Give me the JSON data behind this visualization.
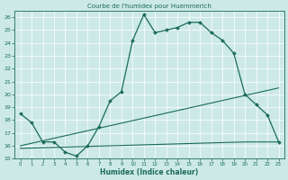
{
  "title": "Courbe de l'humidex pour Huemmerich",
  "xlabel": "Humidex (Indice chaleur)",
  "xlim": [
    -0.5,
    23.5
  ],
  "ylim": [
    15,
    26.5
  ],
  "yticks": [
    15,
    16,
    17,
    18,
    19,
    20,
    21,
    22,
    23,
    24,
    25,
    26
  ],
  "xticks": [
    0,
    1,
    2,
    3,
    4,
    5,
    6,
    7,
    8,
    9,
    10,
    11,
    12,
    13,
    14,
    15,
    16,
    17,
    18,
    19,
    20,
    21,
    22,
    23
  ],
  "color": "#1a6b5a",
  "bg_color": "#cce9e7",
  "main_x": [
    0,
    1,
    2,
    3,
    4,
    5,
    6,
    7,
    8,
    9,
    10,
    11,
    12,
    13,
    14,
    15,
    16,
    17,
    18,
    19,
    20,
    21,
    22,
    23
  ],
  "main_y": [
    18.5,
    17.8,
    16.3,
    16.3,
    15.5,
    15.2,
    16.0,
    17.5,
    19.5,
    20.2,
    24.2,
    26.2,
    24.8,
    25.0,
    25.2,
    25.6,
    25.6,
    24.8,
    24.2,
    23.2,
    20.0,
    19.2,
    18.4,
    16.3
  ],
  "line2_x": [
    0,
    23
  ],
  "line2_y": [
    16.0,
    20.5
  ],
  "line3_x": [
    0,
    20,
    23
  ],
  "line3_y": [
    15.8,
    16.3,
    16.3
  ]
}
